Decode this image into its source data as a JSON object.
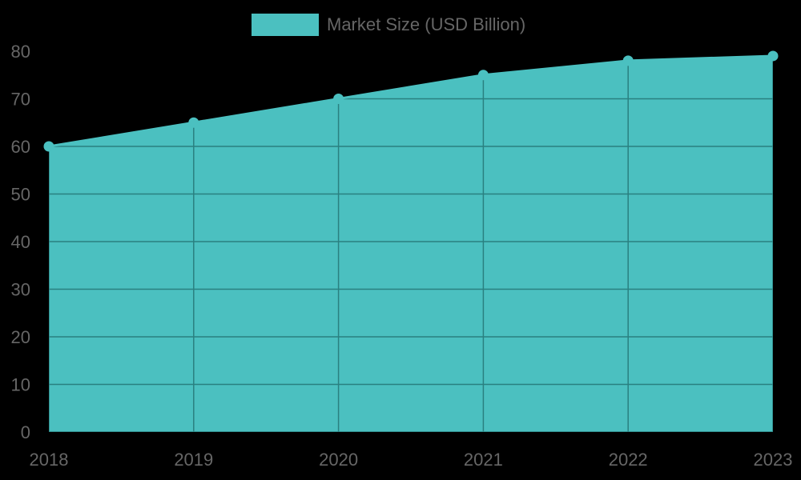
{
  "chart_data": {
    "type": "area",
    "title": "",
    "categories": [
      "2018",
      "2019",
      "2020",
      "2021",
      "2022",
      "2023"
    ],
    "series": [
      {
        "name": "Market Size (USD Billion)",
        "values": [
          60,
          65,
          70,
          75,
          78,
          79
        ],
        "color": "#4bc0c0"
      }
    ],
    "xlabel": "",
    "ylabel": "",
    "ylim": [
      0,
      80
    ],
    "yticks": [
      0,
      10,
      20,
      30,
      40,
      50,
      60,
      70,
      80
    ],
    "grid": true,
    "legend_position": "top"
  },
  "legend": {
    "label": "Market Size (USD Billion)",
    "color": "#4bc0c0"
  },
  "colors": {
    "fill": "#4bc0c0",
    "grid": "#2a8080",
    "tick_text": "#666666",
    "background": "#000000"
  }
}
